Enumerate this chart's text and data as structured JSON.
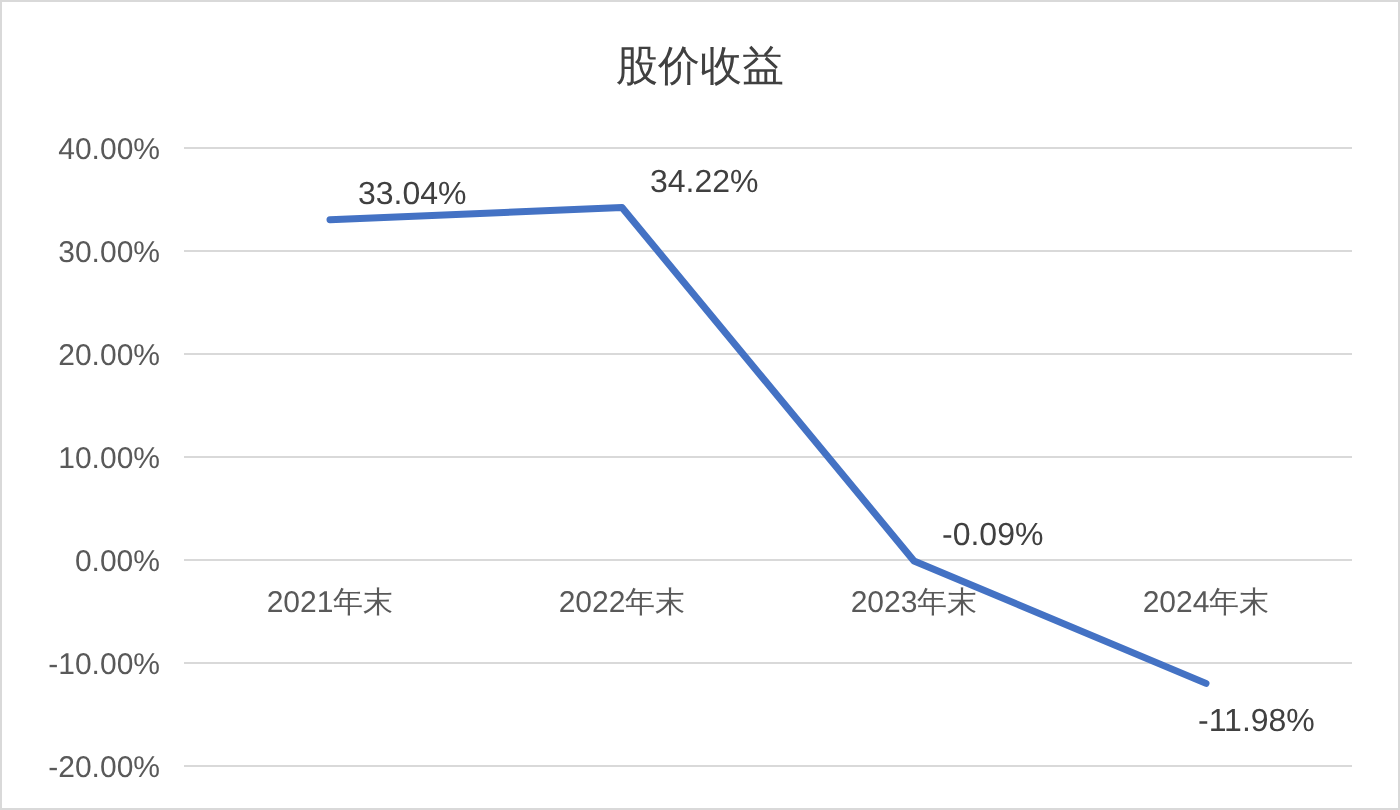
{
  "chart_data": {
    "type": "line",
    "title": "股价收益",
    "categories": [
      "2021年末",
      "2022年末",
      "2023年末",
      "2024年末"
    ],
    "values": [
      33.04,
      34.22,
      -0.09,
      -11.98
    ],
    "color": "#4472c4",
    "value_labels": [
      "33.04%",
      "34.22%",
      "-0.09%",
      "-11.98%"
    ],
    "ylim": [
      -20,
      40
    ],
    "yticks": [
      {
        "value": -20,
        "label": "-20.00%"
      },
      {
        "value": -10,
        "label": "-10.00%"
      },
      {
        "value": 0,
        "label": "0.00%"
      },
      {
        "value": 10,
        "label": "10.00%"
      },
      {
        "value": 20,
        "label": "20.00%"
      },
      {
        "value": 30,
        "label": "30.00%"
      },
      {
        "value": 40,
        "label": "40.00%"
      }
    ],
    "grid": "y",
    "marker": "none",
    "line_style": "solid"
  }
}
